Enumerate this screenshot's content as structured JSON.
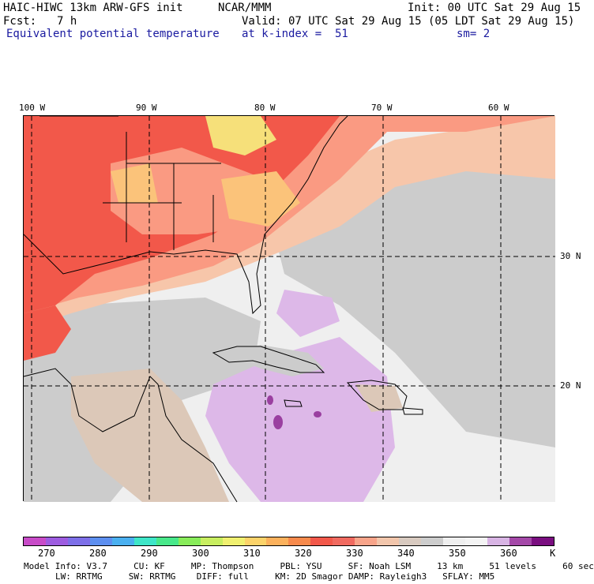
{
  "header": {
    "model": "HAIC-HIWC 13km ARW-GFS init",
    "org": "NCAR/MMM",
    "init": "Init: 00 UTC Sat 29 Aug 15",
    "fcst_label": "Fcst:",
    "fcst_value": "7 h",
    "valid": "Valid: 07 UTC Sat 29 Aug 15 (05 LDT Sat 29 Aug 15)",
    "field": "Equivalent potential temperature",
    "level": "at k-index =  51",
    "smooth": "sm= 2"
  },
  "map": {
    "lon_labels": [
      "100 W",
      "90 W",
      "80 W",
      "70 W",
      "60 W"
    ],
    "lat_labels": [
      "30 N",
      "20 N"
    ],
    "colors": {
      "hot": "#f2584a",
      "warm": "#fa9a82",
      "peach": "#f7c6aa",
      "tan": "#dcc8b8",
      "gray": "#cccccc",
      "light": "#efefef",
      "lavender": "#ddb8e8",
      "purple": "#9a3fa0",
      "yellow": "#f6e07a",
      "orange": "#fbc37a"
    }
  },
  "colorbar": {
    "colors": [
      "#c84bc8",
      "#9d5ce0",
      "#7d6fe8",
      "#5d8ff0",
      "#4ab0f0",
      "#3ee6c8",
      "#48e88a",
      "#88ec5a",
      "#c8ee60",
      "#f0f070",
      "#fbd36a",
      "#fbb15c",
      "#f78a4c",
      "#f2584a",
      "#f06a60",
      "#f8a48a",
      "#f2c6ac",
      "#d8cac0",
      "#cdcdcd",
      "#efefef",
      "#f4f4f4",
      "#d8b4e4",
      "#a448a8",
      "#7a0e80"
    ],
    "ticks": [
      "270",
      "280",
      "290",
      "300",
      "310",
      "320",
      "330",
      "340",
      "350",
      "360"
    ],
    "unit": "K"
  },
  "footer": {
    "line1": "Model Info: V3.7     CU: KF     MP: Thompson     PBL: YSU     SF: Noah LSM     13 km     51 levels     60 sec",
    "line2": "LW: RRTMG     SW: RRTMG    DIFF: full     KM: 2D Smagor DAMP: Rayleigh3   SFLAY: MM5"
  }
}
